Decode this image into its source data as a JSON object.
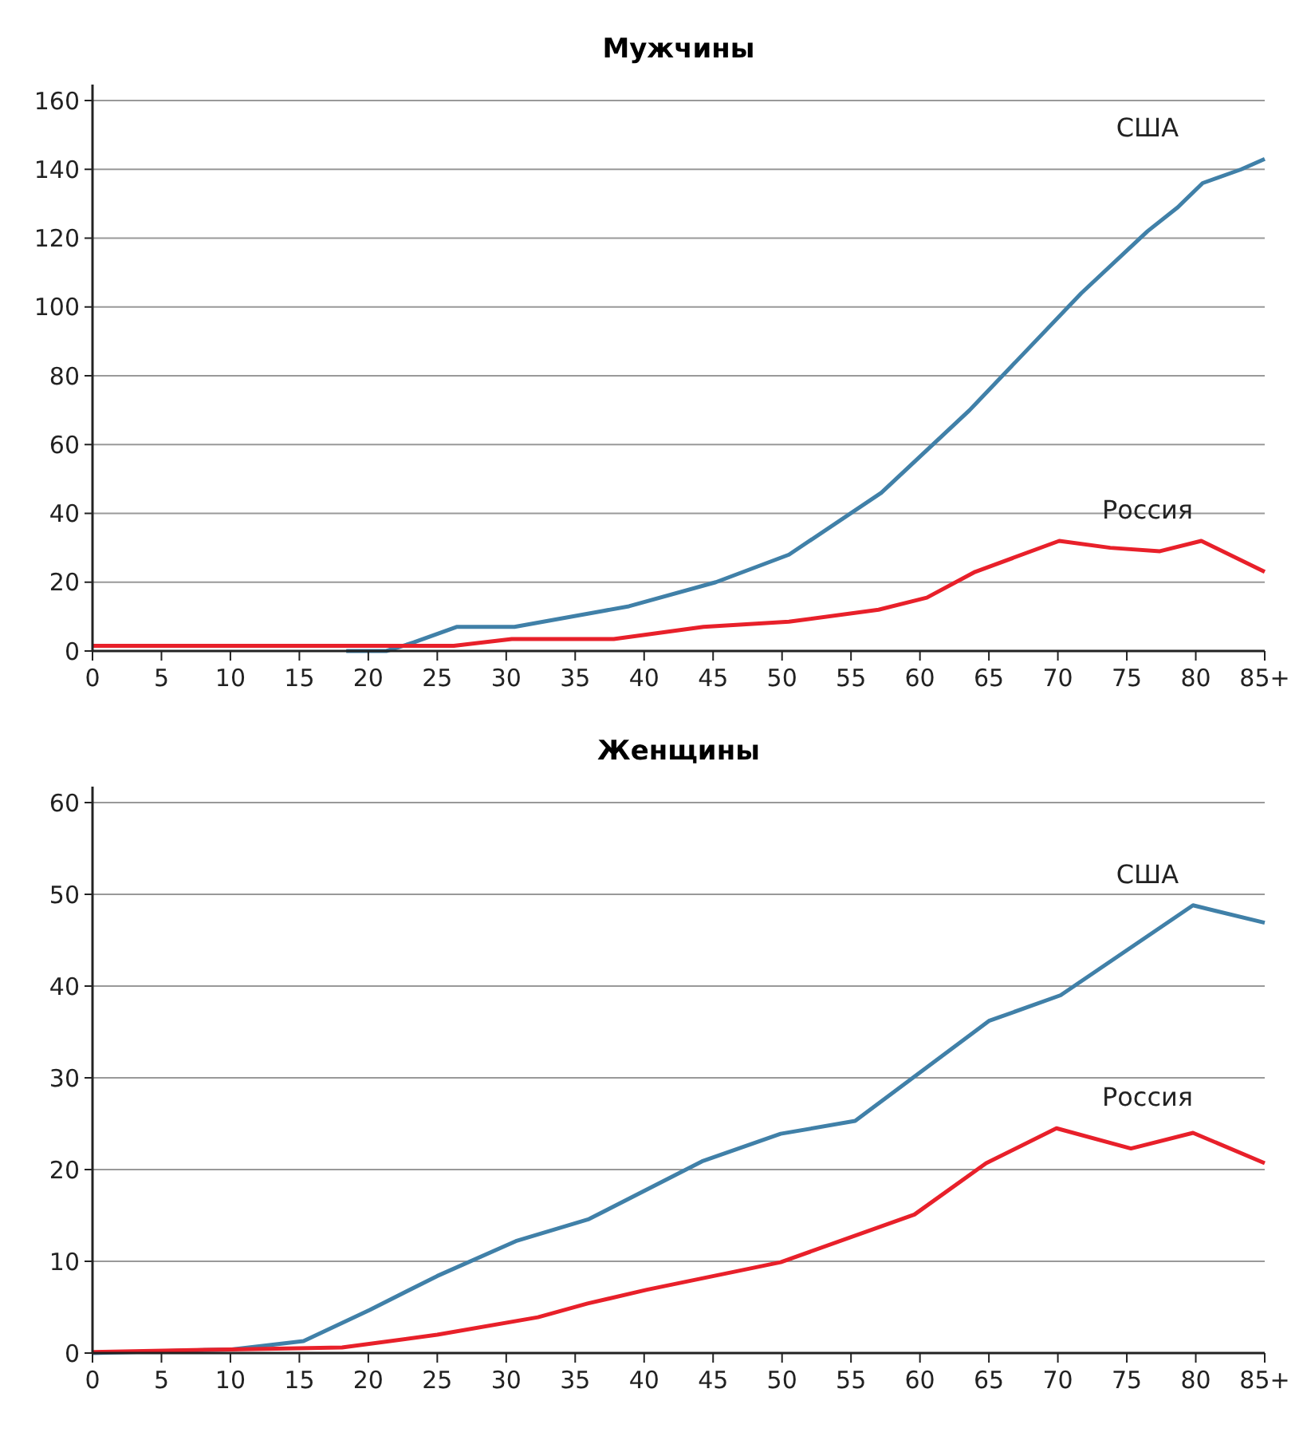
{
  "chart_data": [
    {
      "type": "line",
      "title": "Мужчины",
      "xlim": [
        0,
        85
      ],
      "xticks": [
        0,
        5,
        10,
        15,
        20,
        25,
        30,
        35,
        40,
        45,
        50,
        55,
        60,
        65,
        70,
        75,
        80,
        {
          "value": 85,
          "label": "85+"
        }
      ],
      "ylim": [
        0,
        160
      ],
      "yticks": [
        0,
        20,
        40,
        60,
        80,
        100,
        120,
        140,
        160
      ],
      "grid": "y",
      "series": [
        {
          "name": "США",
          "color": "#4080a8",
          "x": [
            18.4,
            21.3,
            23.3,
            26.4,
            30.6,
            38.9,
            45.2,
            50.5,
            57.2,
            63.6,
            71.7,
            76.5,
            78.7,
            80.5,
            83.3,
            85
          ],
          "values": [
            0,
            0,
            2.5,
            7,
            7,
            13,
            20,
            28,
            46,
            70,
            104,
            122,
            129,
            136,
            140,
            143
          ]
        },
        {
          "name": "Россия",
          "color": "#e8202a",
          "x": [
            0,
            26.2,
            30.4,
            37.8,
            44.3,
            50.5,
            57,
            60.5,
            64,
            70.1,
            73.8,
            77.4,
            80.4,
            85
          ],
          "values": [
            1.5,
            1.5,
            3.5,
            3.5,
            7,
            8.5,
            12,
            15.5,
            23,
            32,
            30,
            29,
            32,
            23
          ]
        }
      ]
    },
    {
      "type": "line",
      "title": "Женщины",
      "xlim": [
        0,
        85
      ],
      "xticks": [
        0,
        5,
        10,
        15,
        20,
        25,
        30,
        35,
        40,
        45,
        50,
        55,
        60,
        65,
        70,
        75,
        80,
        {
          "value": 85,
          "label": "85+"
        }
      ],
      "ylim": [
        0,
        60
      ],
      "yticks": [
        0,
        10,
        20,
        30,
        40,
        50,
        60
      ],
      "grid": "y",
      "series": [
        {
          "name": "США",
          "color": "#4080a8",
          "x": [
            0,
            10.1,
            15.3,
            20.1,
            25,
            30.7,
            36,
            44.2,
            49.9,
            55.3,
            65,
            70.2,
            79.8,
            85
          ],
          "values": [
            0,
            0.4,
            1.3,
            4.7,
            8.4,
            12.2,
            14.6,
            20.9,
            23.9,
            25.3,
            36.2,
            39,
            48.8,
            46.9
          ]
        },
        {
          "name": "Россия",
          "color": "#e8202a",
          "x": [
            0,
            10.1,
            18.1,
            25,
            32.3,
            35.9,
            40.2,
            49.9,
            59.6,
            64.8,
            69.9,
            75.3,
            79.8,
            85
          ],
          "values": [
            0.1,
            0.4,
            0.6,
            2,
            3.9,
            5.4,
            6.9,
            9.9,
            15.1,
            20.7,
            24.5,
            22.3,
            24,
            20.7
          ]
        }
      ]
    }
  ]
}
